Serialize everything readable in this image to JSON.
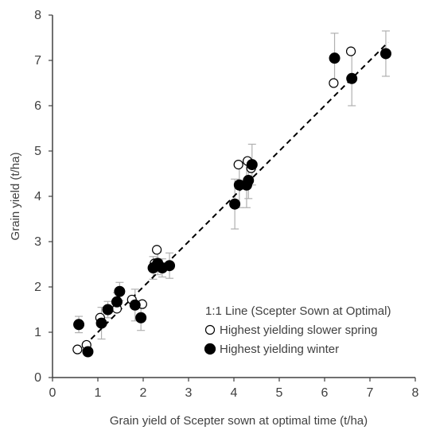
{
  "chart_data": {
    "type": "scatter",
    "xlabel": "Grain yield of Scepter sown at optimal time (t/ha)",
    "ylabel": "Grain yield (t/ha)",
    "xlim": [
      0,
      8
    ],
    "ylim": [
      0,
      8
    ],
    "x_ticks": [
      "0",
      "1",
      "2",
      "3",
      "4",
      "5",
      "6",
      "7",
      "8"
    ],
    "y_ticks": [
      "0",
      "1",
      "2",
      "3",
      "4",
      "5",
      "6",
      "7",
      "8"
    ],
    "grid": false,
    "legend_position": "bottom-right",
    "legend": [
      {
        "label": "1:1 Line (Scepter Sown at Optimal)",
        "marker": "dashed-line"
      },
      {
        "label": "Highest yielding slower spring",
        "marker": "open-circle"
      },
      {
        "label": "Highest yielding winter",
        "marker": "filled-circle"
      }
    ],
    "reference_line": {
      "name": "1:1 Line (Scepter Sown at Optimal)",
      "x": [
        0.7,
        7.4
      ],
      "y": [
        0.7,
        7.4
      ],
      "style": "dashed"
    },
    "series": [
      {
        "name": "Highest yielding slower spring",
        "marker": "open-circle",
        "points": [
          {
            "x": 0.55,
            "y": 0.62,
            "err": 0.0
          },
          {
            "x": 0.75,
            "y": 0.72,
            "err": 0.0
          },
          {
            "x": 1.05,
            "y": 1.32,
            "err": 0.0
          },
          {
            "x": 1.42,
            "y": 1.52,
            "err": 0.0
          },
          {
            "x": 1.75,
            "y": 1.72,
            "err": 0.0
          },
          {
            "x": 1.98,
            "y": 1.62,
            "err": 0.0
          },
          {
            "x": 2.25,
            "y": 2.52,
            "err": 0.0
          },
          {
            "x": 2.3,
            "y": 2.82,
            "err": 0.0
          },
          {
            "x": 4.1,
            "y": 4.7,
            "err": 0.0
          },
          {
            "x": 4.3,
            "y": 4.78,
            "err": 0.0
          },
          {
            "x": 4.38,
            "y": 4.62,
            "err": 0.0
          },
          {
            "x": 6.2,
            "y": 6.5,
            "err": 0.0
          },
          {
            "x": 6.58,
            "y": 7.2,
            "err": 0.0
          }
        ]
      },
      {
        "name": "Highest yielding winter",
        "marker": "filled-circle",
        "points": [
          {
            "x": 0.58,
            "y": 1.17,
            "err": 0.18
          },
          {
            "x": 0.78,
            "y": 0.57,
            "err": 0.0
          },
          {
            "x": 1.08,
            "y": 1.2,
            "err": 0.35
          },
          {
            "x": 1.22,
            "y": 1.5,
            "err": 0.18
          },
          {
            "x": 1.42,
            "y": 1.67,
            "err": 0.2
          },
          {
            "x": 1.48,
            "y": 1.9,
            "err": 0.2
          },
          {
            "x": 1.82,
            "y": 1.6,
            "err": 0.35
          },
          {
            "x": 1.95,
            "y": 1.32,
            "err": 0.28
          },
          {
            "x": 2.22,
            "y": 2.42,
            "err": 0.25
          },
          {
            "x": 2.32,
            "y": 2.52,
            "err": 0.25
          },
          {
            "x": 2.42,
            "y": 2.42,
            "err": 0.2
          },
          {
            "x": 2.58,
            "y": 2.47,
            "err": 0.28
          },
          {
            "x": 4.02,
            "y": 3.83,
            "err": 0.55
          },
          {
            "x": 4.12,
            "y": 4.25,
            "err": 0.5
          },
          {
            "x": 4.28,
            "y": 4.25,
            "err": 0.5
          },
          {
            "x": 4.32,
            "y": 4.35,
            "err": 0.4
          },
          {
            "x": 4.4,
            "y": 4.7,
            "err": 0.45
          },
          {
            "x": 6.22,
            "y": 7.05,
            "err": 0.55
          },
          {
            "x": 6.6,
            "y": 6.6,
            "err": 0.6
          },
          {
            "x": 7.35,
            "y": 7.15,
            "err": 0.5
          }
        ]
      }
    ],
    "colors": {
      "marker": "#000000",
      "axis": "#404040",
      "error_bar": "#b0b0b0",
      "text": "#404040"
    }
  }
}
